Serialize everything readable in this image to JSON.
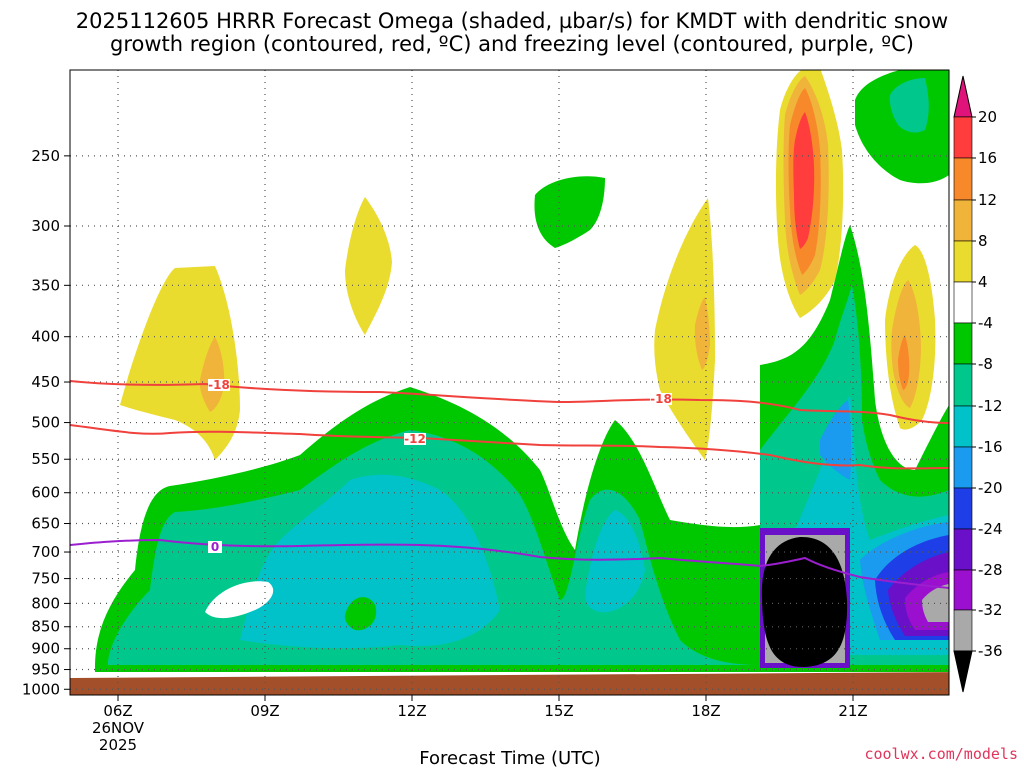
{
  "chart_data": {
    "type": "heatmap",
    "title_line1": "2025112605 HRRR Forecast Omega (shaded, µbar/s) for KMDT with dendritic snow",
    "title_line2": "growth region (contoured, red, ºC) and freezing level (contoured, purple, ºC)",
    "xlabel": "Forecast Time (UTC)",
    "x_ticks": [
      "06Z",
      "09Z",
      "12Z",
      "15Z",
      "18Z",
      "21Z"
    ],
    "x_date_line1": "26NOV",
    "x_date_line2": "2025",
    "y_ticks": [
      "250",
      "300",
      "350",
      "400",
      "450",
      "500",
      "550",
      "600",
      "650",
      "700",
      "750",
      "800",
      "850",
      "900",
      "950",
      "1000"
    ],
    "y_scale": "log-pressure",
    "grid": "dotted",
    "colorbar_ticks": [
      "20",
      "16",
      "12",
      "8",
      "4",
      "-4",
      "-8",
      "-12",
      "-16",
      "-20",
      "-24",
      "-28",
      "-32",
      "-36"
    ],
    "colors": {
      "c16_20": "#ff3d3d",
      "c12_16": "#f7892b",
      "c8_12": "#f0b43a",
      "c4_8": "#eadb2f",
      "neutral": "#ffffff",
      "m4_m8": "#00c800",
      "m8_m12": "#00c88c",
      "m12_m16": "#00c2c8",
      "m16_m20": "#1a9bf0",
      "m20_m24": "#1e3ee8",
      "m24_m28": "#6a10c8",
      "m28_m32": "#9b0fcf",
      "m32_m36": "#a9a9a9",
      "below_m36": "#000000",
      "above_20": "#e0137a",
      "dgz_contour": "#f0413c",
      "freezing_contour": "#9b1fcf",
      "ground": "#a3502a"
    },
    "contour_labels": {
      "dgz_upper": "-18",
      "dgz_lower": "-12",
      "freezing": "0"
    }
  },
  "credit": "coolwx.com/models"
}
